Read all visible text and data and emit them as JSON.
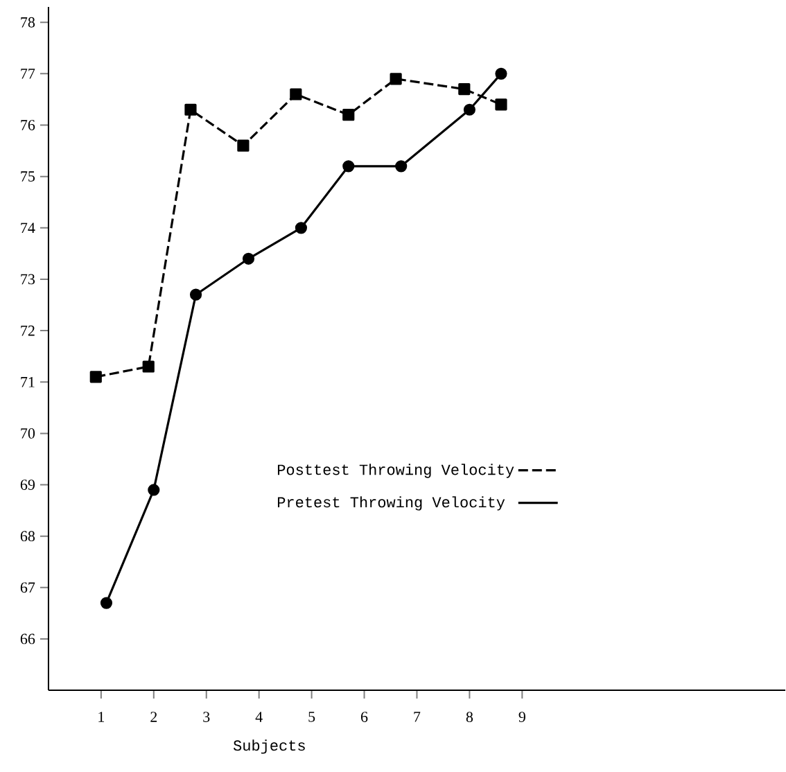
{
  "chart_data": {
    "type": "line",
    "xlabel": "Subjects",
    "xlim": [
      0,
      14
    ],
    "xticks": [
      1,
      2,
      3,
      4,
      5,
      6,
      7,
      8,
      9
    ],
    "ylim": [
      65,
      78.3
    ],
    "yticks": [
      66,
      67,
      68,
      69,
      70,
      71,
      72,
      73,
      74,
      75,
      76,
      77,
      78
    ],
    "grid": false,
    "legend": "right",
    "series": [
      {
        "name": "Posttest Throwing Velocity",
        "color": "#000000",
        "marker": "square",
        "line_style": "dashed",
        "x": [
          0.9,
          1.9,
          2.7,
          3.7,
          4.7,
          5.7,
          6.6,
          7.9,
          8.6
        ],
        "values": [
          71.1,
          71.3,
          76.3,
          75.6,
          76.6,
          76.2,
          76.9,
          76.7,
          76.4
        ]
      },
      {
        "name": "Pretest Throwing Velocity",
        "color": "#000000",
        "marker": "circle",
        "line_style": "solid",
        "x": [
          1.1,
          2.0,
          2.8,
          3.8,
          4.8,
          5.7,
          6.7,
          8.0,
          8.6
        ],
        "values": [
          66.7,
          68.9,
          72.7,
          73.4,
          74.0,
          75.2,
          75.2,
          76.3,
          77.0
        ]
      }
    ]
  }
}
